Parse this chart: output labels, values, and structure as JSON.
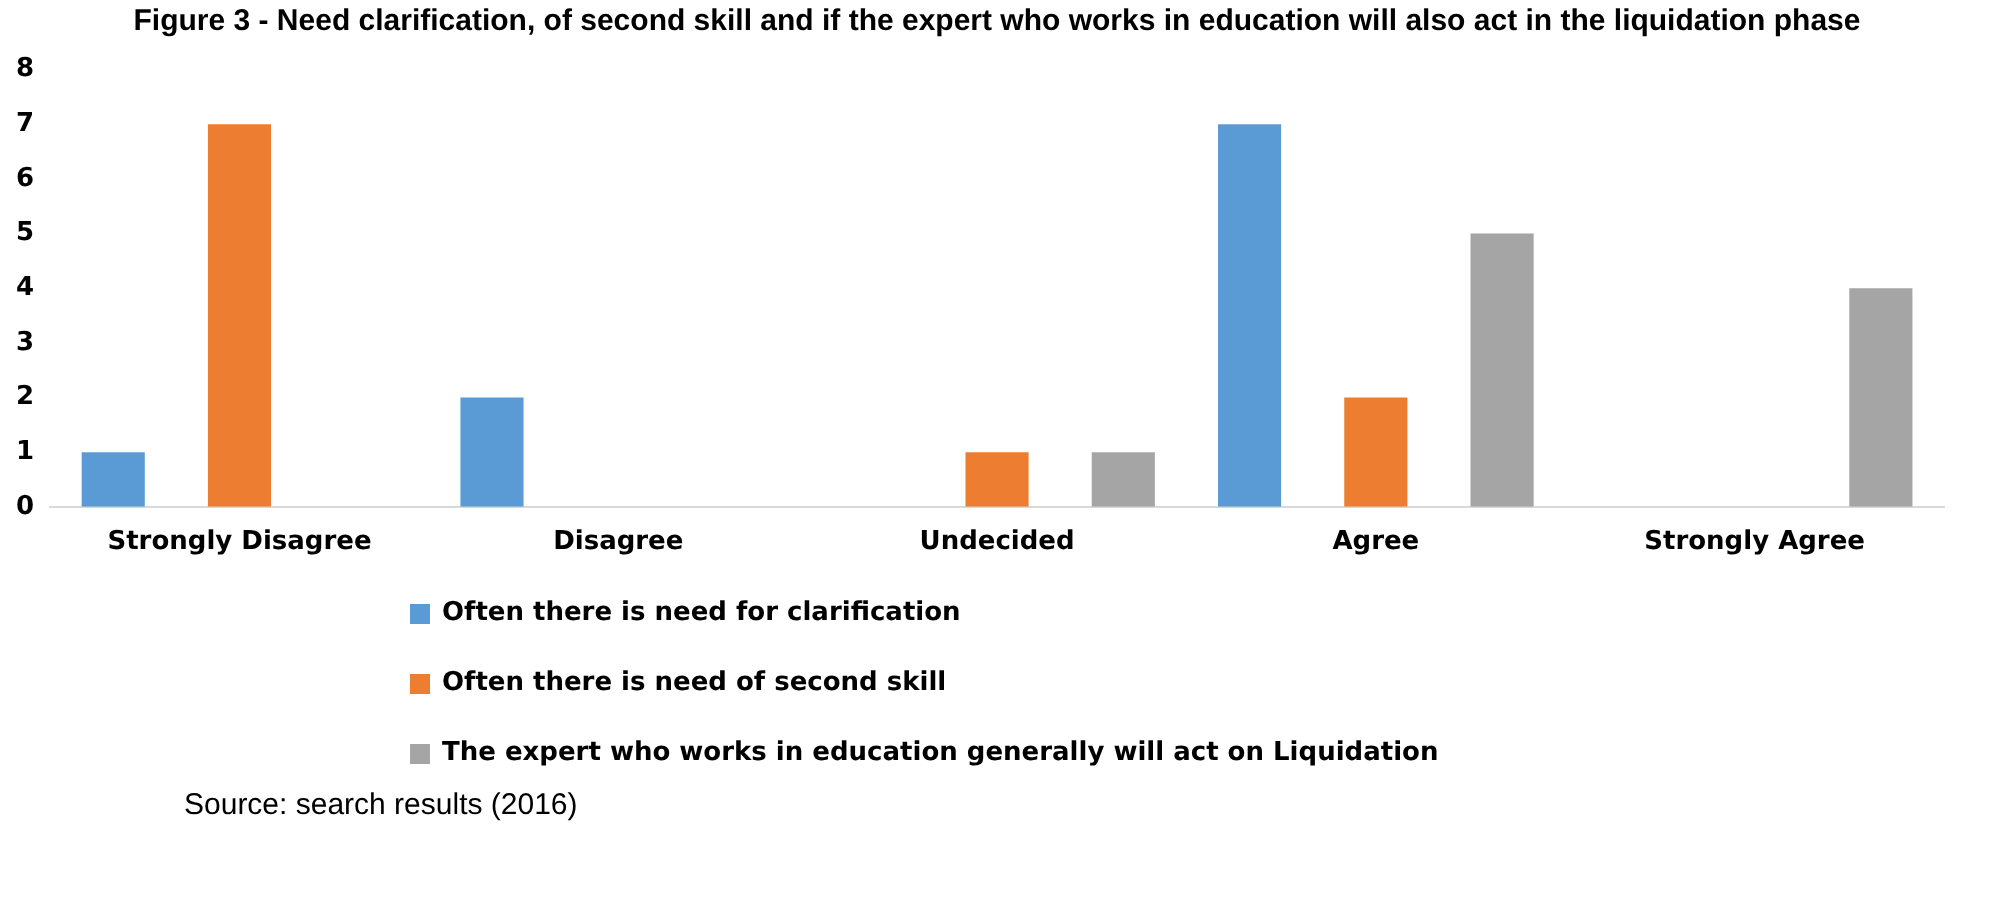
{
  "chart_data": {
    "type": "bar",
    "title": "Figure 3 - Need clarification, of second skill and if the expert who works in education will also act in the liquidation phase",
    "categories": [
      "Strongly Disagree",
      "Disagree",
      "Undecided",
      "Agree",
      "Strongly Agree"
    ],
    "series": [
      {
        "name": "Often there is need for clarification",
        "color": "#5b9bd5",
        "values": [
          1,
          2,
          0,
          7,
          0
        ]
      },
      {
        "name": "Often there is need of second skill",
        "color": "#ed7d31",
        "values": [
          7,
          0,
          1,
          2,
          0
        ]
      },
      {
        "name": "The expert who works in education generally will act on Liquidation",
        "color": "#a5a5a5",
        "values": [
          0,
          0,
          1,
          5,
          4
        ]
      }
    ],
    "ylim": [
      0,
      8
    ],
    "yticks": [
      0,
      1,
      2,
      3,
      4,
      5,
      6,
      7,
      8
    ],
    "grid": false,
    "legend": "bottom",
    "annotations": [
      "Source: search results (2016)"
    ]
  }
}
